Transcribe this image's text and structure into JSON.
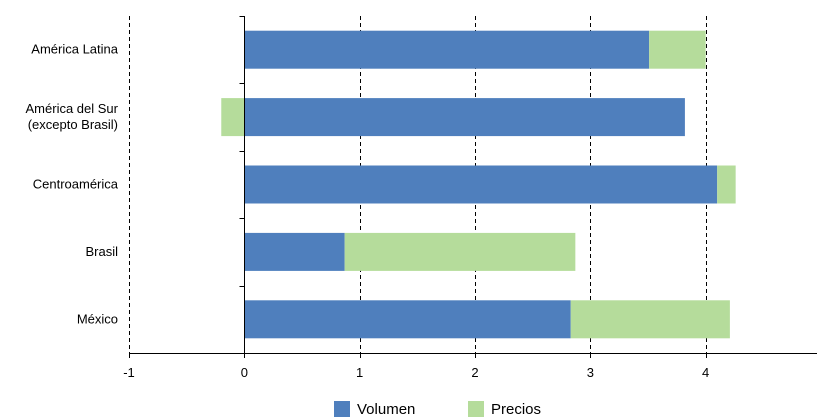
{
  "chart_data": {
    "type": "bar",
    "orientation": "horizontal",
    "stacked": true,
    "categories": [
      "América Latina",
      "América del Sur\n(excepto Brasil)",
      "Centroamérica",
      "Brasil",
      "México"
    ],
    "series": [
      {
        "name": "Volumen",
        "color": "#4f7fbd",
        "values": [
          3.51,
          3.82,
          4.1,
          0.87,
          2.83
        ]
      },
      {
        "name": "Precios",
        "color": "#b5dc9b",
        "values": [
          0.49,
          -0.2,
          0.16,
          2.0,
          1.38
        ]
      }
    ],
    "xlim": [
      -1,
      5
    ],
    "xticks": [
      "-1",
      "0",
      "1",
      "2",
      "3",
      "4",
      "5"
    ],
    "grid": "vertical dashed",
    "legend_position": "bottom"
  }
}
